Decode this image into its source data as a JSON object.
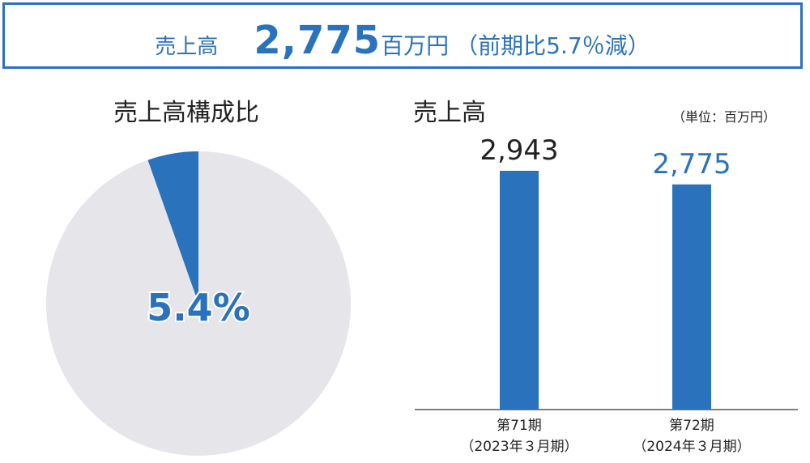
{
  "banner": {
    "label": "売上高",
    "value": "2,775",
    "unit": "百万円",
    "change": "（前期比5.7％減）"
  },
  "pie": {
    "title": "売上高構成比",
    "percent_label": "5.4%"
  },
  "bars": {
    "title": "売上高",
    "unit_note": "（単位：百万円）"
  },
  "colors": {
    "accent": "#2a72bb",
    "pie_rest": "#e6e6ea",
    "axis": "#555555"
  },
  "chart_data": [
    {
      "type": "pie",
      "title": "売上高構成比",
      "slices": [
        {
          "name": "",
          "value": 5.4
        },
        {
          "name": "",
          "value": 94.6
        }
      ]
    },
    {
      "type": "bar",
      "title": "売上高",
      "ylabel": "（単位：百万円）",
      "categories": [
        {
          "line1": "第71期",
          "line2": "（2023年３月期）"
        },
        {
          "line1": "第72期",
          "line2": "（2024年３月期）"
        }
      ],
      "values": [
        2943,
        2775
      ],
      "value_labels": [
        "2,943",
        "2,775"
      ],
      "ylim": [
        0,
        3500
      ]
    }
  ]
}
